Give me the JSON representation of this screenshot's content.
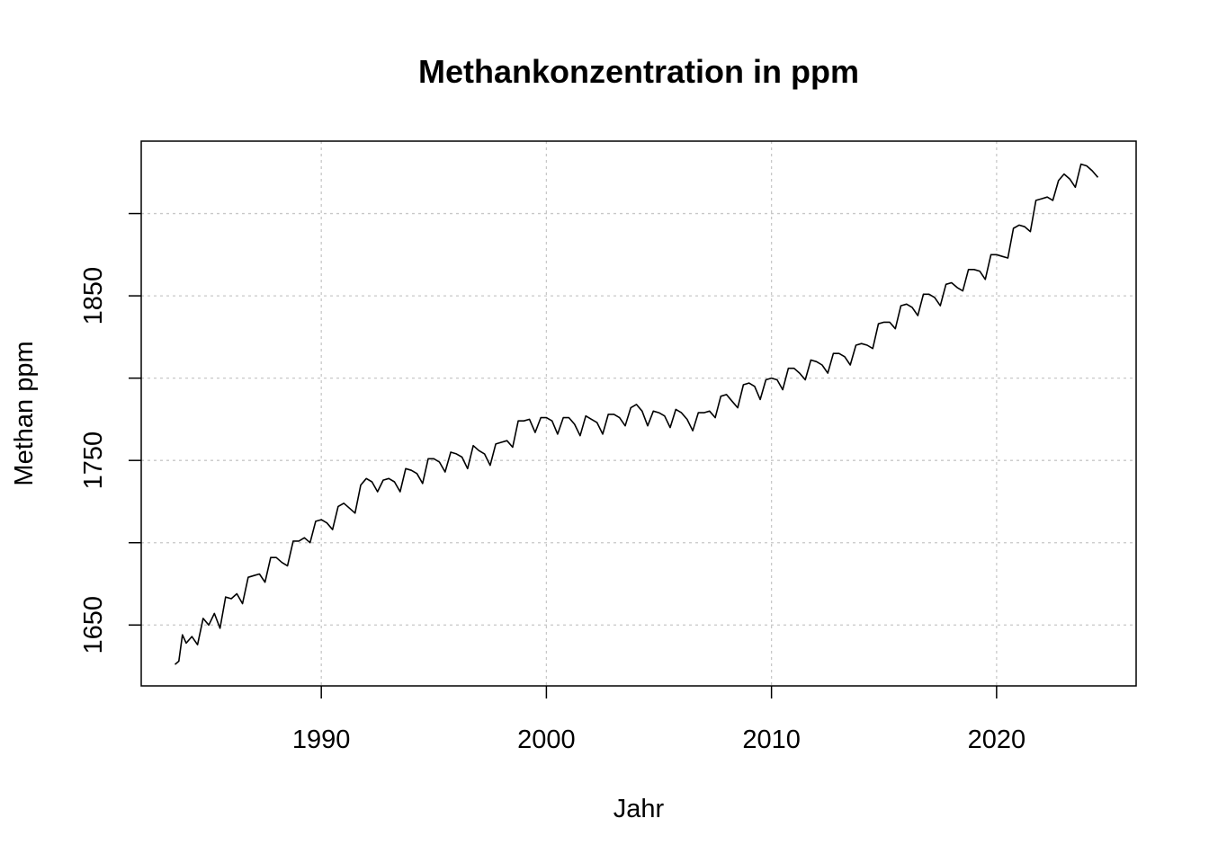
{
  "chart_data": {
    "type": "line",
    "title": "Methankonzentration in ppm",
    "xlabel": "Jahr",
    "ylabel": "Methan ppm",
    "xlim": [
      1982.0,
      2026.2
    ],
    "ylim": [
      1613,
      1944
    ],
    "x_ticks": [
      1990,
      2000,
      2010,
      2020
    ],
    "x_tick_labels": [
      "1990",
      "2000",
      "2010",
      "2020"
    ],
    "y_ticks": [
      1650,
      1700,
      1750,
      1800,
      1850,
      1900
    ],
    "y_tick_labels": [
      "1650",
      "",
      "1750",
      "",
      "1850",
      ""
    ],
    "grid": true,
    "line_color": "#000000",
    "grid_color": "#c8c8c8",
    "series": [
      {
        "x": [
          1983.5,
          1983.67,
          1983.83,
          1984.0,
          1984.25,
          1984.5,
          1984.75,
          1985.0,
          1985.25,
          1985.5,
          1985.75,
          1986.0,
          1986.25,
          1986.5,
          1986.75,
          1987.0,
          1987.25,
          1987.5,
          1987.75,
          1988.0,
          1988.25,
          1988.5,
          1988.75,
          1989.0,
          1989.25,
          1989.5,
          1989.75,
          1990.0,
          1990.25,
          1990.5,
          1990.75,
          1991.0,
          1991.25,
          1991.5,
          1991.75,
          1992.0,
          1992.25,
          1992.5,
          1992.75,
          1993.0,
          1993.25,
          1993.5,
          1993.75,
          1994.0,
          1994.25,
          1994.5,
          1994.75,
          1995.0,
          1995.25,
          1995.5,
          1995.75,
          1996.0,
          1996.25,
          1996.5,
          1996.75,
          1997.0,
          1997.25,
          1997.5,
          1997.75,
          1998.0,
          1998.25,
          1998.5,
          1998.75,
          1999.0,
          1999.25,
          1999.5,
          1999.75,
          2000.0,
          2000.25,
          2000.5,
          2000.75,
          2001.0,
          2001.25,
          2001.5,
          2001.75,
          2002.0,
          2002.25,
          2002.5,
          2002.75,
          2003.0,
          2003.25,
          2003.5,
          2003.75,
          2004.0,
          2004.25,
          2004.5,
          2004.75,
          2005.0,
          2005.25,
          2005.5,
          2005.75,
          2006.0,
          2006.25,
          2006.5,
          2006.75,
          2007.0,
          2007.25,
          2007.5,
          2007.75,
          2008.0,
          2008.25,
          2008.5,
          2008.75,
          2009.0,
          2009.25,
          2009.5,
          2009.75,
          2010.0,
          2010.25,
          2010.5,
          2010.75,
          2011.0,
          2011.25,
          2011.5,
          2011.75,
          2012.0,
          2012.25,
          2012.5,
          2012.75,
          2013.0,
          2013.25,
          2013.5,
          2013.75,
          2014.0,
          2014.25,
          2014.5,
          2014.75,
          2015.0,
          2015.25,
          2015.5,
          2015.75,
          2016.0,
          2016.25,
          2016.5,
          2016.75,
          2017.0,
          2017.25,
          2017.5,
          2017.75,
          2018.0,
          2018.25,
          2018.5,
          2018.75,
          2019.0,
          2019.25,
          2019.5,
          2019.75,
          2020.0,
          2020.25,
          2020.5,
          2020.75,
          2021.0,
          2021.25,
          2021.5,
          2021.75,
          2022.0,
          2022.25,
          2022.5,
          2022.75,
          2023.0,
          2023.25,
          2023.5,
          2023.75,
          2024.0,
          2024.25,
          2024.5
        ],
        "y": [
          1626,
          1628,
          1644,
          1639,
          1643,
          1638,
          1654,
          1650,
          1657,
          1648,
          1667,
          1666,
          1669,
          1663,
          1679,
          1680,
          1681,
          1676,
          1691,
          1691,
          1688,
          1686,
          1701,
          1701,
          1703,
          1700,
          1713,
          1714,
          1712,
          1708,
          1722,
          1724,
          1721,
          1718,
          1735,
          1739,
          1737,
          1731,
          1738,
          1739,
          1737,
          1731,
          1745,
          1744,
          1742,
          1736,
          1751,
          1751,
          1749,
          1743,
          1755,
          1754,
          1752,
          1745,
          1759,
          1756,
          1754,
          1747,
          1760,
          1761,
          1762,
          1758,
          1774,
          1774,
          1775,
          1767,
          1776,
          1776,
          1774,
          1766,
          1776,
          1776,
          1772,
          1765,
          1777,
          1775,
          1773,
          1766,
          1778,
          1778,
          1776,
          1771,
          1782,
          1784,
          1780,
          1771,
          1780,
          1779,
          1777,
          1770,
          1781,
          1779,
          1775,
          1768,
          1779,
          1779,
          1780,
          1776,
          1789,
          1790,
          1786,
          1782,
          1796,
          1797,
          1795,
          1787,
          1799,
          1800,
          1799,
          1793,
          1806,
          1806,
          1803,
          1799,
          1811,
          1810,
          1808,
          1803,
          1815,
          1815,
          1813,
          1808,
          1820,
          1821,
          1820,
          1818,
          1833,
          1834,
          1834,
          1830,
          1844,
          1845,
          1843,
          1838,
          1851,
          1851,
          1849,
          1844,
          1857,
          1858,
          1855,
          1853,
          1866,
          1866,
          1865,
          1860,
          1875,
          1875,
          1874,
          1873,
          1891,
          1893,
          1892,
          1889,
          1908,
          1909,
          1910,
          1908,
          1920,
          1924,
          1921,
          1916,
          1930,
          1929,
          1926,
          1922
        ]
      }
    ]
  }
}
